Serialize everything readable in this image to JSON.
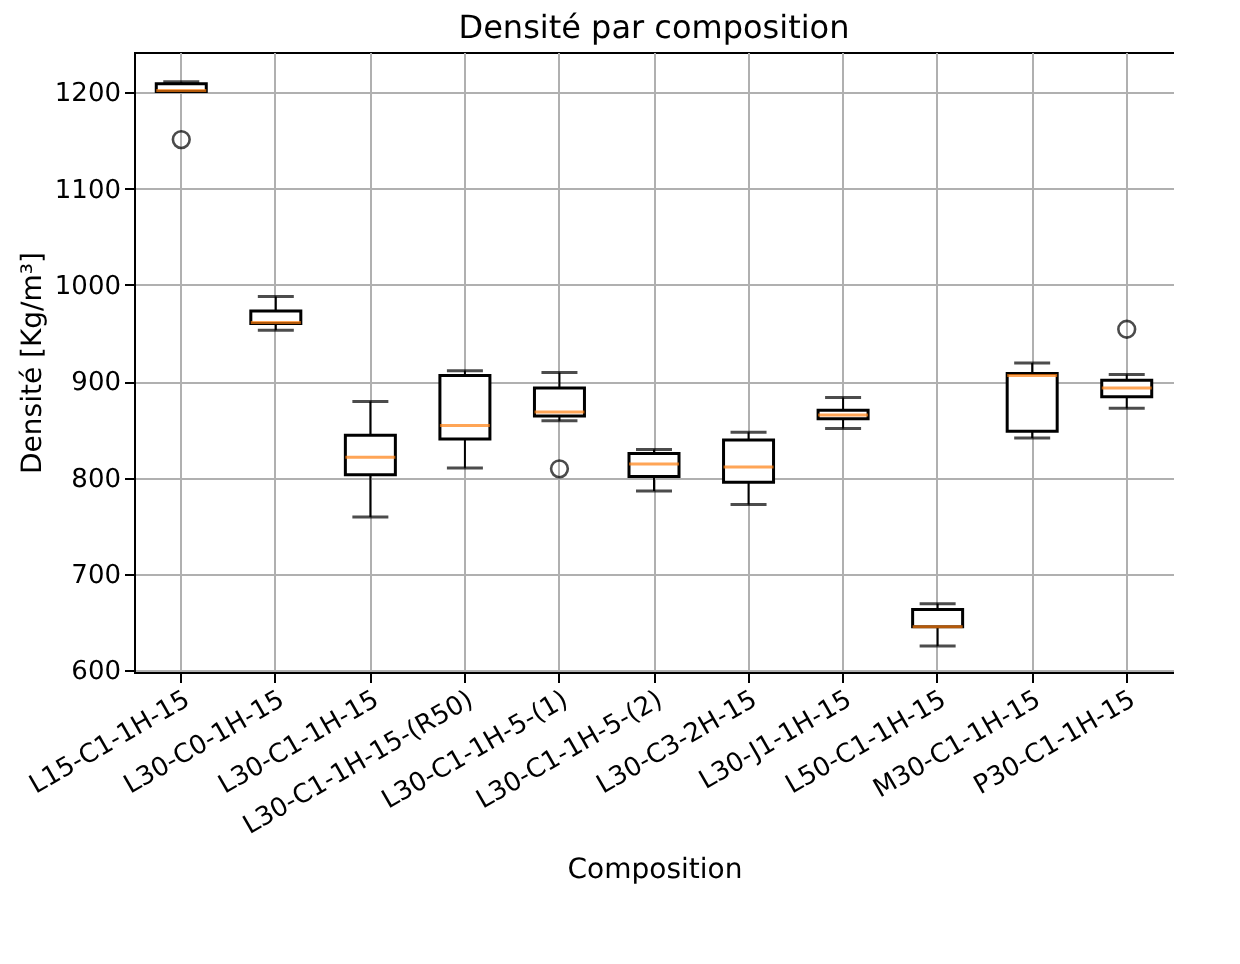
{
  "chart_data": {
    "type": "box",
    "title": "Densité par composition",
    "xlabel": "Composition",
    "ylabel": "Densité [Kg/m³]",
    "categories": [
      "L15-C1-1H-15",
      "L30-C0-1H-15",
      "L30-C1-1H-15",
      "L30-C1-1H-15-(R50)",
      "L30-C1-1H-5-(1)",
      "L30-C1-1H-5-(2)",
      "L30-C3-2H-15",
      "L30-J1-1H-15",
      "L50-C1-1H-15",
      "M30-C1-1H-15",
      "P30-C1-1H-15"
    ],
    "boxes": [
      {
        "low": 1201,
        "q1": 1201,
        "median": 1202,
        "q3": 1209,
        "high": 1211,
        "outliers": [
          1151
        ]
      },
      {
        "low": 953,
        "q1": 960,
        "median": 961,
        "q3": 973,
        "high": 988
      },
      {
        "low": 759,
        "q1": 803,
        "median": 821,
        "q3": 844,
        "high": 879
      },
      {
        "low": 810,
        "q1": 840,
        "median": 854,
        "q3": 906,
        "high": 911
      },
      {
        "low": 859,
        "q1": 864,
        "median": 868,
        "q3": 893,
        "high": 909,
        "outliers": [
          809
        ]
      },
      {
        "low": 786,
        "q1": 801,
        "median": 814,
        "q3": 825,
        "high": 829
      },
      {
        "low": 772,
        "q1": 795,
        "median": 811,
        "q3": 839,
        "high": 847
      },
      {
        "low": 851,
        "q1": 861,
        "median": 865,
        "q3": 870,
        "high": 883
      },
      {
        "low": 625,
        "q1": 645,
        "median": 645,
        "q3": 663,
        "high": 669
      },
      {
        "low": 841,
        "q1": 848,
        "median": 906,
        "q3": 908,
        "high": 919
      },
      {
        "low": 872,
        "q1": 884,
        "median": 893,
        "q3": 901,
        "high": 907,
        "outliers": [
          954
        ]
      }
    ],
    "ylim": [
      598,
      1242
    ],
    "yticks": [
      600,
      700,
      800,
      900,
      1000,
      1100,
      1200
    ],
    "grid": true
  }
}
